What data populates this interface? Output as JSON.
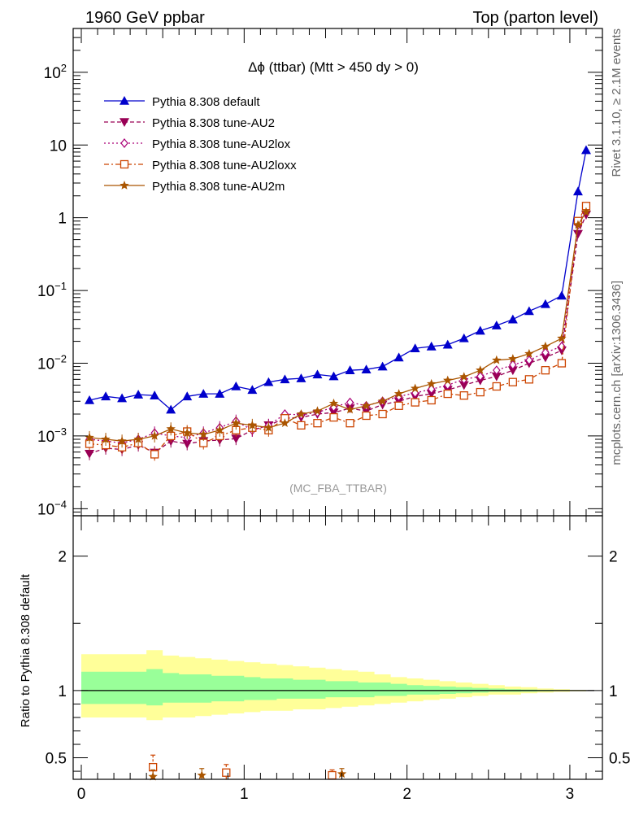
{
  "header": {
    "left": "1960 GeV ppbar",
    "right": "Top (parton level)"
  },
  "side_labels": {
    "rivet": "Rivet 3.1.10, ≥ 2.1M events",
    "mcplots": "mcplots.cern.ch [arXiv:1306.3436]"
  },
  "watermark": "(MC_FBA_TTBAR)",
  "chart_data": [
    {
      "type": "line",
      "panel": "main",
      "title": "Δϕ (ttbar) (Mtt > 450 dy > 0)",
      "xlabel": "",
      "ylabel": "",
      "log_y": true,
      "xlim": [
        -0.05,
        3.2
      ],
      "ylim": [
        8e-05,
        400
      ],
      "y_tick_labels": [
        {
          "value": 100,
          "base": "10",
          "exp": "2"
        },
        {
          "value": 10,
          "base": "10",
          "exp": ""
        },
        {
          "value": 1,
          "base": "1",
          "exp": ""
        },
        {
          "value": 0.1,
          "base": "10",
          "exp": "−1"
        },
        {
          "value": 0.01,
          "base": "10",
          "exp": "−2"
        },
        {
          "value": 0.001,
          "base": "10",
          "exp": "−3"
        },
        {
          "value": 0.0001,
          "base": "10",
          "exp": "−4"
        }
      ],
      "legend_position": "top-left",
      "x": [
        0.05,
        0.15,
        0.25,
        0.35,
        0.45,
        0.55,
        0.65,
        0.75,
        0.85,
        0.95,
        1.05,
        1.15,
        1.25,
        1.35,
        1.45,
        1.55,
        1.65,
        1.75,
        1.85,
        1.95,
        2.05,
        2.15,
        2.25,
        2.35,
        2.45,
        2.55,
        2.65,
        2.75,
        2.85,
        2.95,
        3.05,
        3.1
      ],
      "series": [
        {
          "name": "Pythia 8.308 default",
          "color": "#0000cc",
          "marker": "triangle-up",
          "dash": "",
          "values": [
            0.0031,
            0.0035,
            0.0033,
            0.0037,
            0.0036,
            0.0023,
            0.0035,
            0.0038,
            0.0038,
            0.0048,
            0.0043,
            0.0055,
            0.006,
            0.0062,
            0.007,
            0.0066,
            0.008,
            0.0082,
            0.009,
            0.012,
            0.016,
            0.017,
            0.018,
            0.022,
            0.028,
            0.033,
            0.04,
            0.052,
            0.065,
            0.085,
            2.3,
            8.5
          ]
        },
        {
          "name": "Pythia 8.308 tune-AU2",
          "color": "#990055",
          "marker": "triangle-down",
          "dash": "5,3",
          "values": [
            0.00057,
            0.00068,
            0.00065,
            0.00075,
            0.00059,
            0.00085,
            0.00078,
            0.00085,
            0.00088,
            0.00092,
            0.0012,
            0.0014,
            0.00175,
            0.0018,
            0.002,
            0.0021,
            0.0024,
            0.0022,
            0.0027,
            0.003,
            0.0035,
            0.0038,
            0.0043,
            0.005,
            0.0058,
            0.0066,
            0.008,
            0.01,
            0.012,
            0.015,
            0.6,
            1.1
          ]
        },
        {
          "name": "Pythia 8.308 tune-AU2lox",
          "color": "#aa0077",
          "marker": "diamond-open",
          "dash": "2,3",
          "values": [
            0.0009,
            0.00085,
            0.0008,
            0.0009,
            0.0011,
            0.001,
            0.00095,
            0.0011,
            0.0013,
            0.0016,
            0.0012,
            0.0014,
            0.002,
            0.00195,
            0.0021,
            0.0025,
            0.0029,
            0.0026,
            0.003,
            0.0035,
            0.0039,
            0.0044,
            0.005,
            0.006,
            0.0066,
            0.008,
            0.0095,
            0.011,
            0.014,
            0.017,
            0.8,
            1.4
          ]
        },
        {
          "name": "Pythia 8.308 tune-AU2loxx",
          "color": "#cc4400",
          "marker": "square-open",
          "dash": "6,3,2,3",
          "values": [
            0.00078,
            0.00075,
            0.0007,
            0.0008,
            0.00056,
            0.001,
            0.00115,
            0.0008,
            0.001,
            0.0012,
            0.0013,
            0.0012,
            0.00175,
            0.0014,
            0.0015,
            0.0018,
            0.0015,
            0.0019,
            0.002,
            0.0026,
            0.0029,
            0.0031,
            0.0038,
            0.0036,
            0.004,
            0.0048,
            0.0055,
            0.006,
            0.008,
            0.01,
            0.9,
            1.45
          ]
        },
        {
          "name": "Pythia 8.308 tune-AU2m",
          "color": "#aa5500",
          "marker": "star",
          "dash": "",
          "values": [
            0.00095,
            0.0009,
            0.00085,
            0.0009,
            0.001,
            0.00125,
            0.0011,
            0.00105,
            0.0012,
            0.0015,
            0.0014,
            0.0013,
            0.0015,
            0.002,
            0.0022,
            0.0028,
            0.0023,
            0.0026,
            0.003,
            0.0038,
            0.0045,
            0.0052,
            0.0058,
            0.0065,
            0.008,
            0.011,
            0.0115,
            0.0135,
            0.017,
            0.022,
            0.8,
            1.2
          ]
        }
      ]
    },
    {
      "type": "line",
      "panel": "ratio",
      "ylabel": "Ratio to Pythia 8.308 default",
      "xlabel": "",
      "xlim": [
        -0.05,
        3.2
      ],
      "ylim": [
        0.34,
        2.3
      ],
      "y_ticks": [
        0.5,
        1,
        2
      ],
      "y_tick_labels": [
        "0.5",
        "1",
        "2"
      ],
      "x_ticks": [
        0,
        1,
        2,
        3
      ],
      "x_tick_labels": [
        "0",
        "1",
        "2",
        "3"
      ],
      "band_edges": [
        0.0,
        0.1,
        0.2,
        0.3,
        0.4,
        0.5,
        0.6,
        0.7,
        0.8,
        0.9,
        1.0,
        1.1,
        1.2,
        1.3,
        1.4,
        1.5,
        1.6,
        1.7,
        1.8,
        1.9,
        2.0,
        2.1,
        2.2,
        2.3,
        2.4,
        2.5,
        2.6,
        2.7,
        2.8,
        2.9,
        3.0,
        3.1,
        3.15
      ],
      "yellow_band": {
        "low": [
          0.8,
          0.8,
          0.8,
          0.8,
          0.78,
          0.8,
          0.8,
          0.81,
          0.82,
          0.83,
          0.84,
          0.85,
          0.85,
          0.86,
          0.86,
          0.87,
          0.88,
          0.89,
          0.9,
          0.91,
          0.92,
          0.93,
          0.94,
          0.95,
          0.96,
          0.97,
          0.97,
          0.98,
          0.985,
          0.99,
          0.995,
          0.998
        ],
        "high": [
          1.27,
          1.27,
          1.27,
          1.27,
          1.3,
          1.26,
          1.25,
          1.24,
          1.23,
          1.22,
          1.21,
          1.2,
          1.19,
          1.18,
          1.17,
          1.16,
          1.15,
          1.14,
          1.12,
          1.1,
          1.09,
          1.08,
          1.07,
          1.06,
          1.05,
          1.04,
          1.03,
          1.025,
          1.015,
          1.01,
          1.005,
          1.002
        ]
      },
      "green_band": {
        "low": [
          0.9,
          0.9,
          0.9,
          0.9,
          0.89,
          0.91,
          0.91,
          0.91,
          0.92,
          0.92,
          0.93,
          0.93,
          0.94,
          0.94,
          0.94,
          0.95,
          0.95,
          0.95,
          0.96,
          0.96,
          0.97,
          0.97,
          0.975,
          0.98,
          0.985,
          0.99,
          0.99,
          0.992,
          0.995,
          0.997,
          0.998,
          0.999
        ],
        "high": [
          1.14,
          1.14,
          1.14,
          1.14,
          1.16,
          1.13,
          1.12,
          1.12,
          1.11,
          1.11,
          1.1,
          1.09,
          1.09,
          1.08,
          1.08,
          1.07,
          1.07,
          1.06,
          1.06,
          1.05,
          1.04,
          1.035,
          1.03,
          1.025,
          1.02,
          1.015,
          1.01,
          1.008,
          1.005,
          1.003,
          1.002,
          1.001
        ]
      },
      "points": [
        {
          "series": "Pythia 8.308 tune-AU2loxx",
          "color": "#cc4400",
          "marker": "square-open",
          "x": 0.44,
          "y": 0.43,
          "err": 0.09
        },
        {
          "series": "Pythia 8.308 tune-AU2m",
          "color": "#aa5500",
          "marker": "star",
          "x": 0.44,
          "y": 0.36,
          "err": 0.05
        },
        {
          "series": "Pythia 8.308 tune-AU2m",
          "color": "#aa5500",
          "marker": "star",
          "x": 0.74,
          "y": 0.37,
          "err": 0.05
        },
        {
          "series": "Pythia 8.308 tune-AU2loxx",
          "color": "#cc4400",
          "marker": "square-open",
          "x": 0.89,
          "y": 0.39,
          "err": 0.06
        },
        {
          "series": "Pythia 8.308 tune-AU2loxx",
          "color": "#cc4400",
          "marker": "square-open",
          "x": 1.54,
          "y": 0.37,
          "err": 0.04
        },
        {
          "series": "Pythia 8.308 tune-AU2m",
          "color": "#aa5500",
          "marker": "star",
          "x": 1.6,
          "y": 0.38,
          "err": 0.04
        }
      ]
    }
  ]
}
